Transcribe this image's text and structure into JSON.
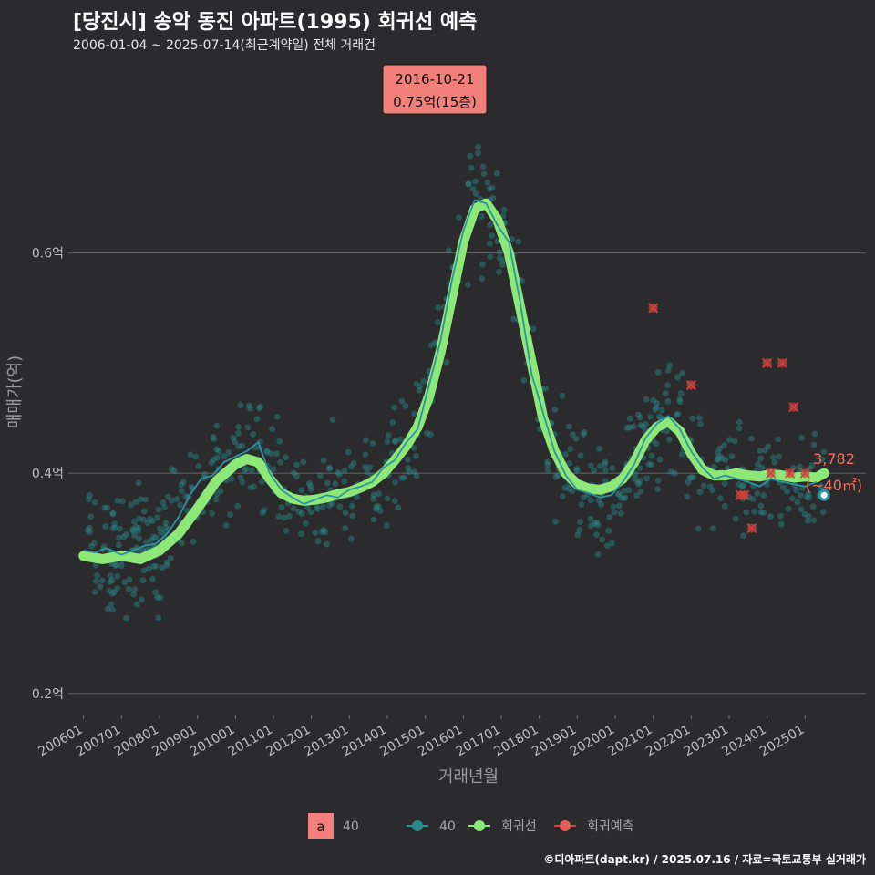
{
  "title": "[당진시] 송악 동진 아파트(1995) 회귀선 예측",
  "subtitle": "2006-01-04 ~ 2025-07-14(최근계약일) 전체 거래건",
  "credit": "©디아파트(dapt.kr) / 2025.07.16 / 자료=국토교통부 실거래가",
  "colors": {
    "background": "#2b2b2d",
    "grid": "#5e5e60",
    "scatter": "#2a8a8a",
    "trend_line": "#2f93a0",
    "regression": "#8ee878",
    "prediction": "#d0423c",
    "annotation": "#f2807a",
    "end_label": "#ee6f66"
  },
  "chart_data": {
    "type": "scatter",
    "xlabel": "거래년월",
    "ylabel": "매매가(억)",
    "x_ticks": [
      "200601",
      "200701",
      "200801",
      "200901",
      "201001",
      "201101",
      "201201",
      "201301",
      "201401",
      "201501",
      "201601",
      "201701",
      "201801",
      "201901",
      "202001",
      "202101",
      "202201",
      "202301",
      "202401",
      "202501"
    ],
    "y_ticks": [
      {
        "value": 0.2,
        "label": "0.2억"
      },
      {
        "value": 0.4,
        "label": "0.4억"
      },
      {
        "value": 0.6,
        "label": "0.6억"
      }
    ],
    "xlim": [
      2005.6,
      2026.6
    ],
    "ylim": [
      0.18,
      0.78
    ],
    "annotation": {
      "date": "2016-10-21",
      "price": "0.75억(15층)",
      "x": 2016.8,
      "y": 0.75
    },
    "end_label": {
      "count": "3,782",
      "area": "(~40㎡)",
      "x": 2025.5,
      "y": 0.38
    },
    "legend": [
      {
        "key": "a",
        "label": "40",
        "kind": "text-key"
      },
      {
        "label": "40",
        "kind": "line-point"
      },
      {
        "label": "회귀선",
        "kind": "line-point"
      },
      {
        "label": "회귀예측",
        "kind": "line-point"
      }
    ],
    "series": [
      {
        "name": "회귀선",
        "x": [
          2006.0,
          2006.5,
          2007.0,
          2007.5,
          2008.0,
          2008.5,
          2009.0,
          2009.5,
          2009.8,
          2010.0,
          2010.3,
          2010.6,
          2010.9,
          2011.2,
          2011.5,
          2011.8,
          2012.1,
          2012.4,
          2012.7,
          2013.0,
          2013.3,
          2013.6,
          2013.9,
          2014.2,
          2014.5,
          2014.8,
          2015.1,
          2015.4,
          2015.7,
          2016.0,
          2016.3,
          2016.6,
          2016.9,
          2017.2,
          2017.5,
          2017.8,
          2018.1,
          2018.4,
          2018.7,
          2019.0,
          2019.3,
          2019.6,
          2019.9,
          2020.2,
          2020.5,
          2020.8,
          2021.1,
          2021.4,
          2021.7,
          2022.0,
          2022.3,
          2022.6,
          2022.9,
          2023.2,
          2023.5,
          2023.8,
          2024.1,
          2024.4,
          2024.7,
          2025.0,
          2025.3,
          2025.5
        ],
        "values": [
          0.325,
          0.322,
          0.325,
          0.322,
          0.33,
          0.345,
          0.368,
          0.393,
          0.402,
          0.408,
          0.413,
          0.41,
          0.395,
          0.382,
          0.377,
          0.375,
          0.376,
          0.378,
          0.381,
          0.383,
          0.387,
          0.392,
          0.4,
          0.412,
          0.425,
          0.442,
          0.47,
          0.51,
          0.56,
          0.61,
          0.64,
          0.645,
          0.63,
          0.6,
          0.55,
          0.5,
          0.45,
          0.42,
          0.4,
          0.39,
          0.386,
          0.385,
          0.388,
          0.395,
          0.41,
          0.43,
          0.442,
          0.447,
          0.438,
          0.418,
          0.403,
          0.398,
          0.398,
          0.4,
          0.398,
          0.397,
          0.399,
          0.398,
          0.396,
          0.397,
          0.396,
          0.4
        ]
      },
      {
        "name": "40",
        "x": [
          2006.0,
          2006.3,
          2006.6,
          2007.0,
          2007.3,
          2007.6,
          2007.9,
          2008.2,
          2008.5,
          2008.8,
          2009.1,
          2009.4,
          2009.7,
          2010.0,
          2010.3,
          2010.6,
          2010.9,
          2011.2,
          2011.5,
          2011.8,
          2012.1,
          2012.4,
          2012.7,
          2013.0,
          2013.3,
          2013.6,
          2013.9,
          2014.2,
          2014.5,
          2014.8,
          2015.1,
          2015.4,
          2015.7,
          2016.0,
          2016.3,
          2016.6,
          2016.9,
          2017.2,
          2017.5,
          2017.8,
          2018.1,
          2018.4,
          2018.7,
          2019.0,
          2019.3,
          2019.6,
          2019.9,
          2020.2,
          2020.5,
          2020.8,
          2021.1,
          2021.4,
          2021.7,
          2022.0,
          2022.3,
          2022.6,
          2022.9,
          2023.2,
          2023.5,
          2023.8,
          2024.1,
          2024.4,
          2024.7,
          2025.0,
          2025.3
        ],
        "values": [
          0.33,
          0.328,
          0.332,
          0.326,
          0.33,
          0.334,
          0.336,
          0.345,
          0.36,
          0.38,
          0.395,
          0.398,
          0.41,
          0.415,
          0.42,
          0.428,
          0.4,
          0.385,
          0.378,
          0.372,
          0.376,
          0.38,
          0.378,
          0.385,
          0.388,
          0.392,
          0.405,
          0.412,
          0.428,
          0.44,
          0.48,
          0.52,
          0.575,
          0.62,
          0.648,
          0.645,
          0.625,
          0.61,
          0.555,
          0.49,
          0.455,
          0.42,
          0.398,
          0.385,
          0.382,
          0.378,
          0.38,
          0.392,
          0.408,
          0.432,
          0.445,
          0.452,
          0.44,
          0.42,
          0.405,
          0.395,
          0.398,
          0.395,
          0.392,
          0.388,
          0.395,
          0.392,
          0.39,
          0.388,
          0.392
        ]
      },
      {
        "name": "회귀예측",
        "x": [
          2021.0,
          2022.0,
          2023.3,
          2023.4,
          2023.6,
          2024.0,
          2024.1,
          2024.4,
          2024.6,
          2024.7,
          2025.0
        ],
        "values": [
          0.55,
          0.48,
          0.38,
          0.38,
          0.35,
          0.5,
          0.4,
          0.5,
          0.4,
          0.46,
          0.4
        ]
      }
    ]
  }
}
